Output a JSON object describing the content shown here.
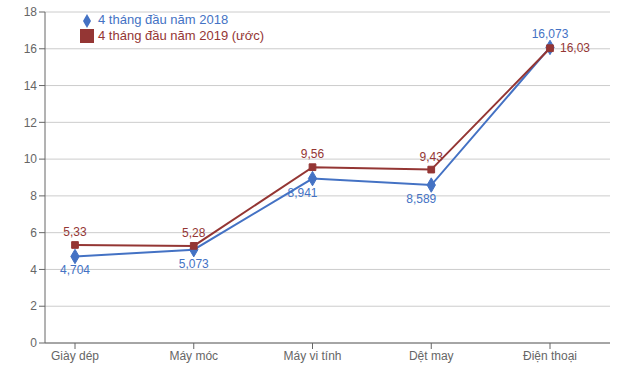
{
  "chart_data": {
    "type": "line",
    "categories": [
      "Giày dép",
      "Máy móc",
      "Máy vi tính",
      "Dệt may",
      "Điện thoại"
    ],
    "series": [
      {
        "name": "4 tháng đầu năm 2018",
        "color": "#4472C4",
        "marker": "diamond",
        "values": [
          4.704,
          5.073,
          8.941,
          8.589,
          16.073
        ],
        "value_labels": [
          "4,704",
          "5,073",
          "8,941",
          "8,589",
          "16,073"
        ]
      },
      {
        "name": "4 tháng đầu năm 2019 (ước)",
        "color": "#943634",
        "marker": "square",
        "values": [
          5.33,
          5.28,
          9.56,
          9.43,
          16.03
        ],
        "value_labels": [
          "5,33",
          "5,28",
          "9,56",
          "9,43",
          "16,03"
        ]
      }
    ],
    "ylim": [
      0,
      18
    ],
    "yticks": [
      0,
      2,
      4,
      6,
      8,
      10,
      12,
      14,
      16,
      18
    ],
    "grid": true,
    "legend": "upper left",
    "data_labels": true
  }
}
